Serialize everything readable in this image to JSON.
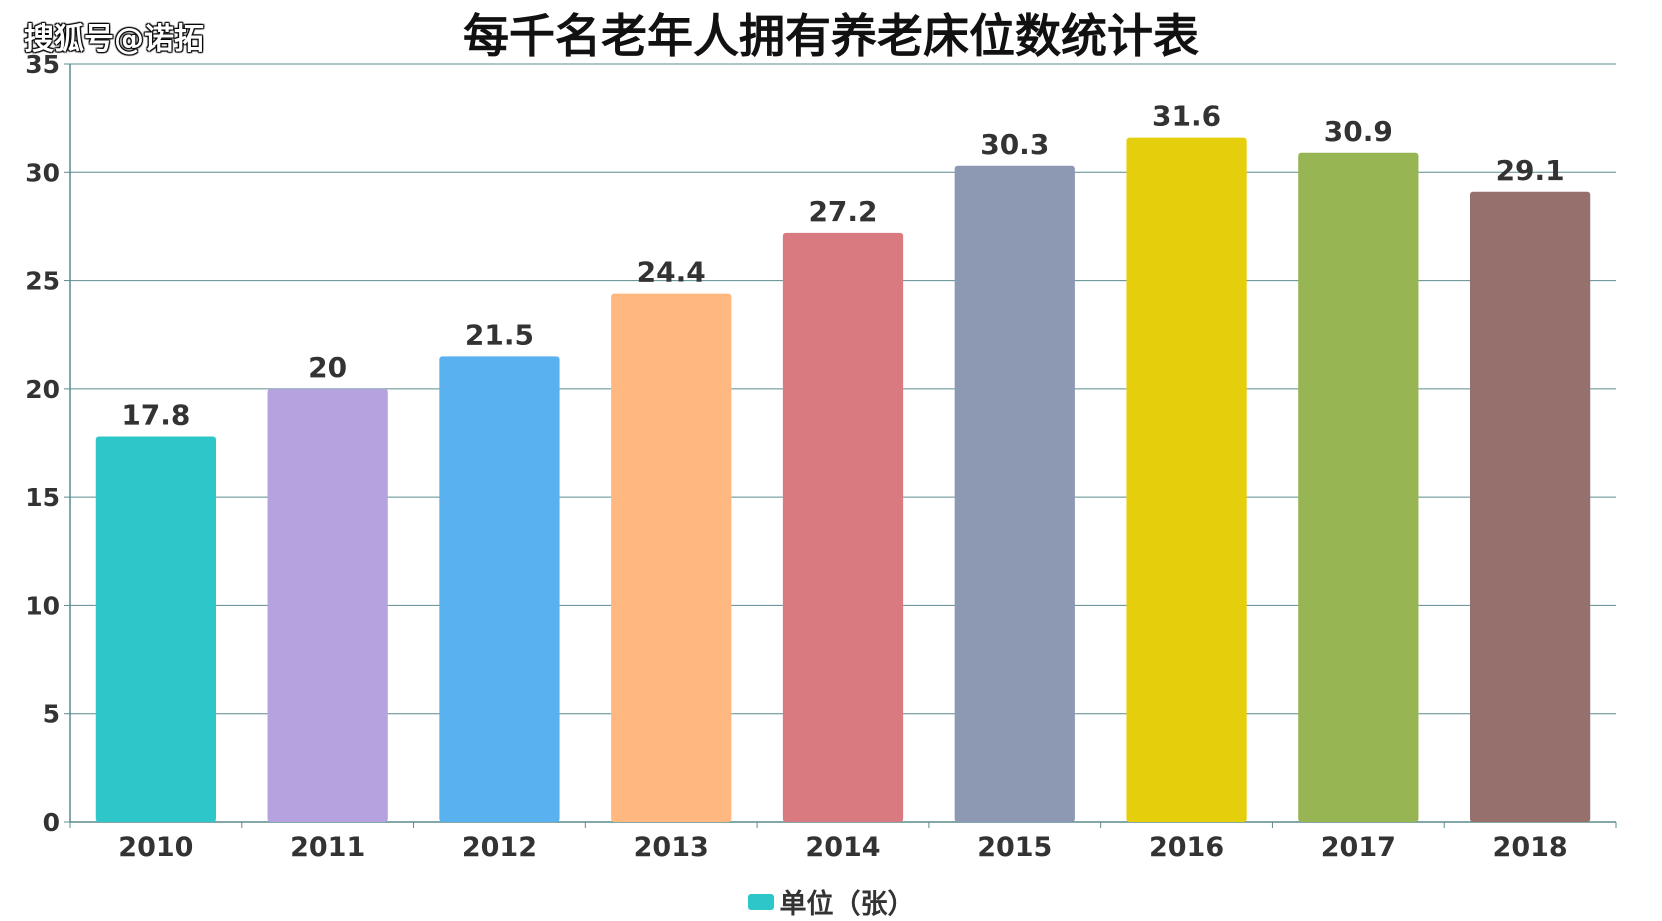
{
  "watermark": "搜狐号@诺拓",
  "chart_data": {
    "type": "bar",
    "title": "每千名老年人拥有养老床位数统计表",
    "categories": [
      "2010",
      "2011",
      "2012",
      "2013",
      "2014",
      "2015",
      "2016",
      "2017",
      "2018"
    ],
    "series": [
      {
        "name": "单位（张）",
        "values": [
          17.8,
          20,
          21.5,
          24.4,
          27.2,
          30.3,
          31.6,
          30.9,
          29.1
        ],
        "data_labels": [
          "17.8",
          "20",
          "21.5",
          "24.4",
          "27.2",
          "30.3",
          "31.6",
          "30.9",
          "29.1"
        ]
      }
    ],
    "bar_colors": [
      "#2ec7c9",
      "#b6a2de",
      "#5ab1ef",
      "#ffb980",
      "#d87a80",
      "#8d98b3",
      "#e5cf0d",
      "#97b552",
      "#95706d"
    ],
    "ylim": [
      0,
      35
    ],
    "yticks": [
      "0",
      "5",
      "10",
      "15",
      "20",
      "25",
      "30",
      "35"
    ],
    "grid": true,
    "legend_position": "bottom-center",
    "xlabel": "",
    "ylabel": ""
  }
}
